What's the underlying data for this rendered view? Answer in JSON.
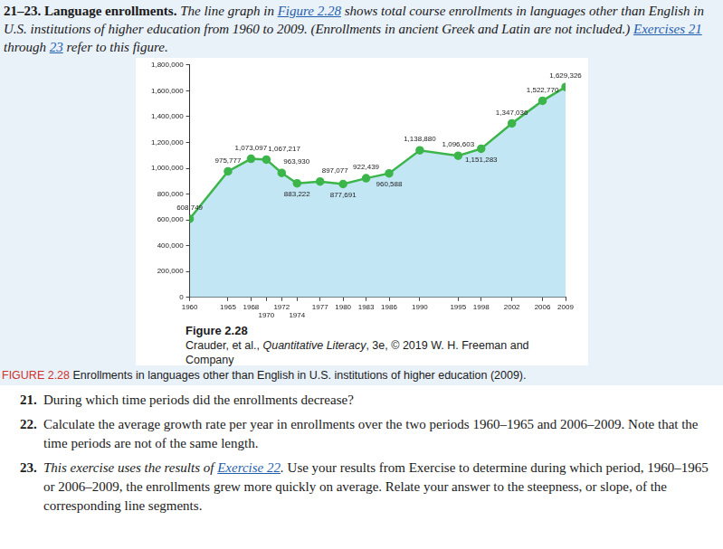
{
  "header": {
    "lead": "21–23. Language enrollments.",
    "text": [
      {
        "text": "The line graph in "
      },
      {
        "text": "Figure 2.28",
        "link": true
      },
      {
        "text": " shows total course enrollments in languages other than English in U.S. institutions of higher education from 1960 to 2009. (Enrollments in ancient Greek and Latin are not included.) "
      },
      {
        "text": "Exercises 21",
        "link": true
      },
      {
        "text": " through "
      },
      {
        "text": "23",
        "link": true
      },
      {
        "text": " refer to this figure."
      }
    ]
  },
  "chart_data": {
    "type": "area",
    "x": [
      1960,
      1965,
      1968,
      1970,
      1972,
      1974,
      1977,
      1980,
      1983,
      1986,
      1990,
      1995,
      1998,
      2002,
      2006,
      2009
    ],
    "values": [
      608749,
      975777,
      1073097,
      1067217,
      963930,
      883222,
      897077,
      877691,
      922439,
      960588,
      1138880,
      1096603,
      1151283,
      1347036,
      1522770,
      1629326
    ],
    "value_labels": [
      "608,749",
      "975,777",
      "1,073,097",
      "1,067,217",
      "963,930",
      "883,222",
      "897,077",
      "877,691",
      "922,439",
      "960,588",
      "1,138,880",
      "1,096,603",
      "1,151,283",
      "1,347,036",
      "1,522,770",
      "1,629,326"
    ],
    "color": "#3cb54a",
    "marker": "circle",
    "line_style": "solid",
    "xlim": [
      1960,
      2009
    ],
    "xticks": [
      1960,
      1965,
      1968,
      1970,
      1972,
      1974,
      1977,
      1980,
      1983,
      1986,
      1990,
      1995,
      1998,
      2002,
      2006,
      2009
    ],
    "ylim": [
      0,
      1800000
    ],
    "yticks": [
      0,
      {
        "value": 200000,
        "label": "200,000"
      },
      {
        "value": 400000,
        "label": "400,000"
      },
      {
        "value": 600000,
        "label": "600,000"
      },
      {
        "value": 800000,
        "label": "800,000"
      },
      {
        "value": 1000000,
        "label": "1,000,000"
      },
      {
        "value": 1200000,
        "label": "1,200,000"
      },
      {
        "value": 1400000,
        "label": "1,400,000"
      },
      {
        "value": 1600000,
        "label": "1,600,000"
      },
      {
        "value": 1800000,
        "label": "1,800,000"
      }
    ],
    "grid": false,
    "data_labels": true
  },
  "caption": {
    "title": "Figure 2.28",
    "credit": [
      {
        "text": "Crauder, et al., "
      },
      {
        "text": "Quantitative Literacy",
        "italic": true
      },
      {
        "text": ", 3e, © 2019 W. H. Freeman and Company"
      }
    ]
  },
  "figure_note": {
    "label": "FIGURE 2.28",
    "text": " Enrollments in languages other than English in U.S. institutions of higher education (2009)."
  },
  "questions": [
    {
      "number": "21.",
      "text": [
        {
          "text": "During which time periods did the enrollments decrease?"
        }
      ]
    },
    {
      "number": "22.",
      "text": [
        {
          "text": "Calculate the average growth rate per year in enrollments over the two periods 1960–1965 and 2006–2009. Note that the time periods are not of the same length."
        }
      ]
    },
    {
      "number": "23.",
      "text": [
        {
          "text": "This exercise uses the results of ",
          "italic": true
        },
        {
          "text": "Exercise 22",
          "italic": true,
          "link": true
        },
        {
          "text": ".",
          "italic": true
        },
        {
          "text": " Use your results from Exercise to determine during which period, 1960–1965 or 2006–2009, the enrollments grew more quickly on average. Relate your answer to the steepness, or slope, of the corresponding line segments."
        }
      ]
    }
  ]
}
